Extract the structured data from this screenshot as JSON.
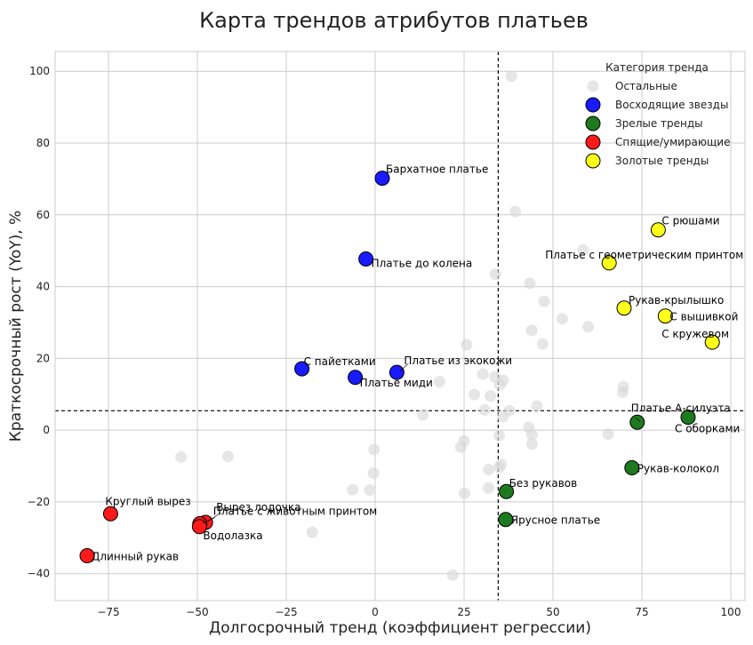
{
  "chart_data": {
    "type": "scatter",
    "title": "Карта трендов атрибутов платьев",
    "xlabel": "Долгосрочный тренд (коэффициент регрессии)",
    "ylabel": "Краткосрочный рост (YoY), %",
    "xlim": [
      -90,
      104
    ],
    "ylim": [
      -47.5,
      105.5
    ],
    "xticks": [
      -75,
      -50,
      -25,
      0,
      25,
      50,
      75,
      100
    ],
    "yticks": [
      -40,
      -20,
      0,
      20,
      40,
      60,
      80,
      100
    ],
    "grid": true,
    "reference_lines": {
      "x": 34.6,
      "y": 5.4
    },
    "legend": {
      "title": "Категория тренда",
      "position": "top-right"
    },
    "series": [
      {
        "name": "Остальные",
        "color": "#d9d9d9",
        "points": [
          {
            "x": 38.3,
            "y": 98.6
          },
          {
            "x": 39.4,
            "y": 60.9
          },
          {
            "x": 58.5,
            "y": 50.2
          },
          {
            "x": 33.8,
            "y": 43.4
          },
          {
            "x": 43.5,
            "y": 40.9
          },
          {
            "x": 47.5,
            "y": 35.9
          },
          {
            "x": 52.6,
            "y": 31.0
          },
          {
            "x": 59.9,
            "y": 28.8
          },
          {
            "x": 44.0,
            "y": 27.8
          },
          {
            "x": 47.1,
            "y": 24.0
          },
          {
            "x": 25.7,
            "y": 23.8
          },
          {
            "x": 30.3,
            "y": 15.6
          },
          {
            "x": 33.7,
            "y": 14.8
          },
          {
            "x": 36.0,
            "y": 13.9
          },
          {
            "x": 18.1,
            "y": 13.5
          },
          {
            "x": 35.1,
            "y": 12.6
          },
          {
            "x": 69.8,
            "y": 12.1
          },
          {
            "x": 69.6,
            "y": 10.6
          },
          {
            "x": 27.9,
            "y": 9.9
          },
          {
            "x": 32.4,
            "y": 9.5
          },
          {
            "x": 45.5,
            "y": 6.7
          },
          {
            "x": 30.8,
            "y": 5.6
          },
          {
            "x": 37.7,
            "y": 5.4
          },
          {
            "x": 35.9,
            "y": 3.7
          },
          {
            "x": 13.4,
            "y": 4.2
          },
          {
            "x": 43.2,
            "y": 0.8
          },
          {
            "x": 44.1,
            "y": -1.3
          },
          {
            "x": 34.9,
            "y": -1.5
          },
          {
            "x": 65.5,
            "y": -1.1
          },
          {
            "x": 44.1,
            "y": -3.9
          },
          {
            "x": 25.0,
            "y": -3.0
          },
          {
            "x": 24.1,
            "y": -4.7
          },
          {
            "x": -0.3,
            "y": -5.4
          },
          {
            "x": -54.6,
            "y": -7.5
          },
          {
            "x": -41.4,
            "y": -7.3
          },
          {
            "x": 35.4,
            "y": -9.5
          },
          {
            "x": 34.9,
            "y": -10.4
          },
          {
            "x": 31.9,
            "y": -11.0
          },
          {
            "x": -0.5,
            "y": -12.0
          },
          {
            "x": 31.9,
            "y": -16.1
          },
          {
            "x": -1.5,
            "y": -16.7
          },
          {
            "x": -6.3,
            "y": -16.6
          },
          {
            "x": 25.1,
            "y": -17.6
          },
          {
            "x": -17.7,
            "y": -28.5
          },
          {
            "x": 21.8,
            "y": -40.4
          }
        ]
      },
      {
        "name": "Восходящие звезды",
        "color": "#1a1aff",
        "points": [
          {
            "x": 2.0,
            "y": 70.2,
            "label": "Бархатное платье"
          },
          {
            "x": -2.6,
            "y": 47.7,
            "label": "Платье до колена"
          },
          {
            "x": -20.6,
            "y": 17.1,
            "label": "С пайетками"
          },
          {
            "x": 6.1,
            "y": 16.1,
            "label": "Платье из экокожи"
          },
          {
            "x": -5.6,
            "y": 14.7,
            "label": "Платье миди"
          }
        ]
      },
      {
        "name": "Зрелые тренды",
        "color": "#1e7a1e",
        "points": [
          {
            "x": 73.7,
            "y": 2.2,
            "label": "Платье А-силуэта"
          },
          {
            "x": 88.0,
            "y": 3.6,
            "label": "С оборками"
          },
          {
            "x": 72.2,
            "y": -10.5,
            "label": "Рукав-колокол"
          },
          {
            "x": 36.9,
            "y": -17.1,
            "label": "Без рукавов"
          },
          {
            "x": 36.7,
            "y": -24.9,
            "label": "Ярусное платье"
          }
        ]
      },
      {
        "name": "Спящие/умирающие",
        "color": "#ff1a1a",
        "points": [
          {
            "x": -74.4,
            "y": -23.3,
            "label": "Круглый вырез"
          },
          {
            "x": -47.7,
            "y": -25.7,
            "label": "Вырез лодочка"
          },
          {
            "x": -49.3,
            "y": -26.1,
            "label": "Платье с животным принтом"
          },
          {
            "x": -49.4,
            "y": -26.9,
            "label": "Водолазка"
          },
          {
            "x": -81.0,
            "y": -35.0,
            "label": "Длинный рукав"
          }
        ]
      },
      {
        "name": "Золотые тренды",
        "color": "#ffff1a",
        "points": [
          {
            "x": 79.6,
            "y": 55.8,
            "label": "С рюшами"
          },
          {
            "x": 65.8,
            "y": 46.6,
            "label": "Платье с геометрическим принтом"
          },
          {
            "x": 70.0,
            "y": 34.0,
            "label": "Рукав-крылышко"
          },
          {
            "x": 81.6,
            "y": 31.8,
            "label": "С вышивкой"
          },
          {
            "x": 94.8,
            "y": 24.5,
            "label": "С кружевом"
          }
        ]
      }
    ]
  }
}
